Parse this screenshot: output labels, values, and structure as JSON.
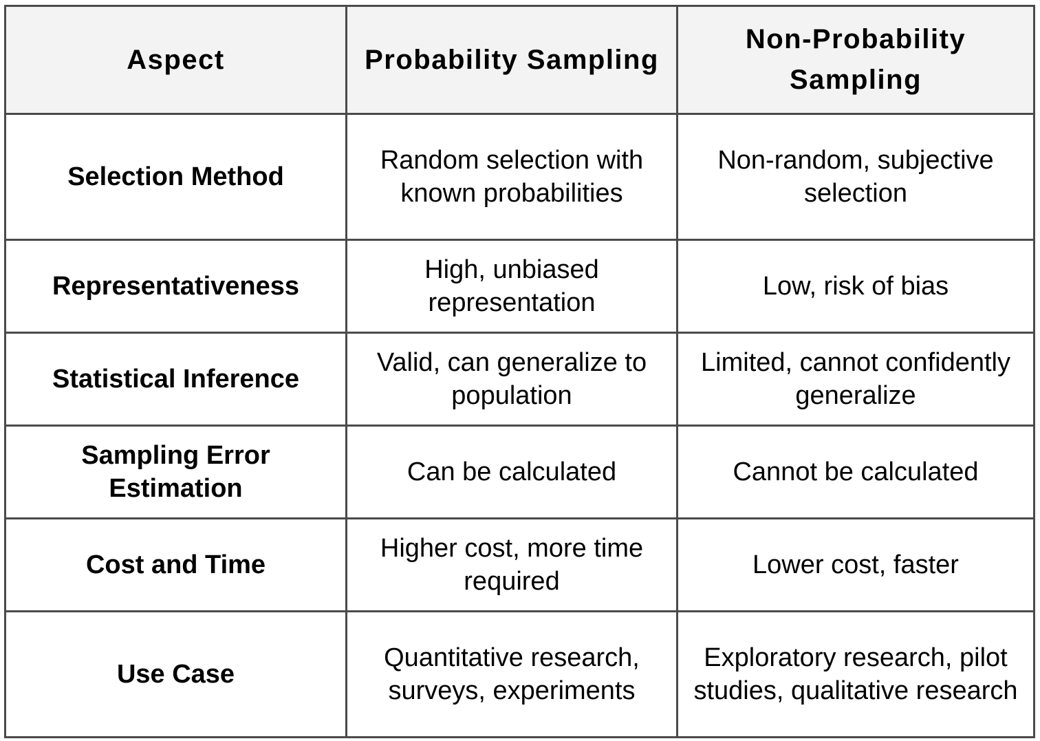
{
  "headers": [
    "Aspect",
    "Probability Sampling",
    "Non-Probability Sampling"
  ],
  "rows": [
    {
      "aspect": "Selection Method",
      "probability": "Random selection with known probabilities",
      "non_probability": "Non-random, subjective selection"
    },
    {
      "aspect": "Representativeness",
      "probability": "High, unbiased representation",
      "non_probability": "Low, risk of bias"
    },
    {
      "aspect": "Statistical Inference",
      "probability": "Valid, can generalize to population",
      "non_probability": "Limited, cannot confidently generalize"
    },
    {
      "aspect": "Sampling Error Estimation",
      "probability": "Can be calculated",
      "non_probability": "Cannot be calculated"
    },
    {
      "aspect": "Cost and Time",
      "probability": "Higher cost, more time required",
      "non_probability": "Lower cost, faster"
    },
    {
      "aspect": "Use Case",
      "probability": "Quantitative research, surveys, experiments",
      "non_probability": "Exploratory research, pilot studies, qualitative research"
    }
  ]
}
